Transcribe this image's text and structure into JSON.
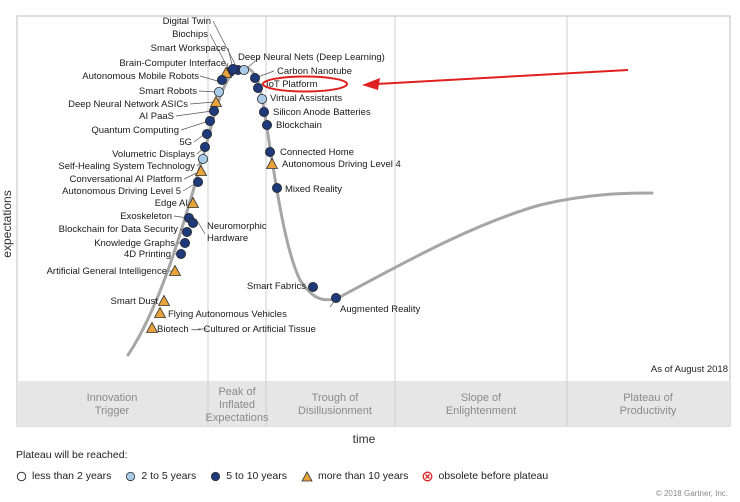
{
  "y_axis_label": "expectations",
  "x_axis_label": "time",
  "as_of": "As of August 2018",
  "phases": [
    {
      "lines": [
        "Innovation",
        "Trigger"
      ]
    },
    {
      "lines": [
        "Peak of",
        "Inflated",
        "Expectations"
      ]
    },
    {
      "lines": [
        "Trough of",
        "Disillusionment"
      ]
    },
    {
      "lines": [
        "Slope of",
        "Enlightenment"
      ]
    },
    {
      "lines": [
        "Plateau of",
        "Productivity"
      ]
    }
  ],
  "technologies": [
    {
      "name": "Digital Twin",
      "marker": "5-10"
    },
    {
      "name": "Biochips",
      "marker": "5-10"
    },
    {
      "name": "Smart Workspace",
      "marker": "5-10"
    },
    {
      "name": "Brain-Computer Interface",
      "marker": "more-10"
    },
    {
      "name": "Autonomous Mobile Robots",
      "marker": "5-10"
    },
    {
      "name": "Smart Robots",
      "marker": "2-5"
    },
    {
      "name": "Deep Neural Network ASICs",
      "marker": "more-10"
    },
    {
      "name": "AI PaaS",
      "marker": "5-10"
    },
    {
      "name": "Quantum Computing",
      "marker": "5-10"
    },
    {
      "name": "5G",
      "marker": "5-10"
    },
    {
      "name": "Volumetric Displays",
      "marker": "5-10"
    },
    {
      "name": "Self-Healing System Technology",
      "marker": "2-5"
    },
    {
      "name": "Conversational AI Platform",
      "marker": "more-10"
    },
    {
      "name": "Autonomous Driving Level 5",
      "marker": "5-10"
    },
    {
      "name": "Edge AI",
      "marker": "more-10"
    },
    {
      "name": "Exoskeleton",
      "marker": "5-10"
    },
    {
      "name": "Blockchain for Data Security",
      "marker": "5-10"
    },
    {
      "name": "Knowledge Graphs",
      "marker": "5-10"
    },
    {
      "name": "4D Printing",
      "marker": "5-10"
    },
    {
      "name": "Artificial General Intelligence",
      "marker": "more-10"
    },
    {
      "name": "Smart Dust",
      "marker": "more-10"
    },
    {
      "name": "Flying Autonomous Vehicles",
      "marker": "more-10"
    },
    {
      "name": "Biotech — Cultured or Artificial Tissue",
      "marker": "more-10"
    },
    {
      "name": "Deep Neural Nets (Deep Learning)",
      "marker": "2-5"
    },
    {
      "name": "Carbon Nanotube",
      "marker": "5-10"
    },
    {
      "name": "IoT Platform",
      "marker": "5-10"
    },
    {
      "name": "Virtual Assistants",
      "marker": "2-5"
    },
    {
      "name": "Silicon Anode Batteries",
      "marker": "5-10"
    },
    {
      "name": "Blockchain",
      "marker": "5-10"
    },
    {
      "name": "Connected Home",
      "marker": "5-10"
    },
    {
      "name": "Autonomous Driving Level 4",
      "marker": "more-10"
    },
    {
      "name": "Mixed Reality",
      "marker": "5-10"
    },
    {
      "name": "Smart Fabrics",
      "marker": "5-10"
    },
    {
      "name": "Augmented Reality",
      "marker": "5-10"
    },
    {
      "name": "Neuromorphic Hardware",
      "marker": "5-10"
    }
  ],
  "legend": {
    "title": "Plateau will be reached:",
    "items": [
      {
        "key": "lt-2",
        "label": "less than 2 years"
      },
      {
        "key": "2-5",
        "label": "2 to 5 years"
      },
      {
        "key": "5-10",
        "label": "5 to 10 years"
      },
      {
        "key": "more-10",
        "label": "more than 10 years"
      },
      {
        "key": "obsolete",
        "label": "obsolete before plateau"
      }
    ]
  },
  "copyright": "© 2018 Gartner, Inc.",
  "colors": {
    "marker_dark_blue": "#1f3a7a",
    "marker_light_blue": "#a9cbe8",
    "marker_triangle": "#e8a33a",
    "curve": "#a6a6a6",
    "annotation_red": "#e02020",
    "phase_band": "#e6e6e6"
  }
}
